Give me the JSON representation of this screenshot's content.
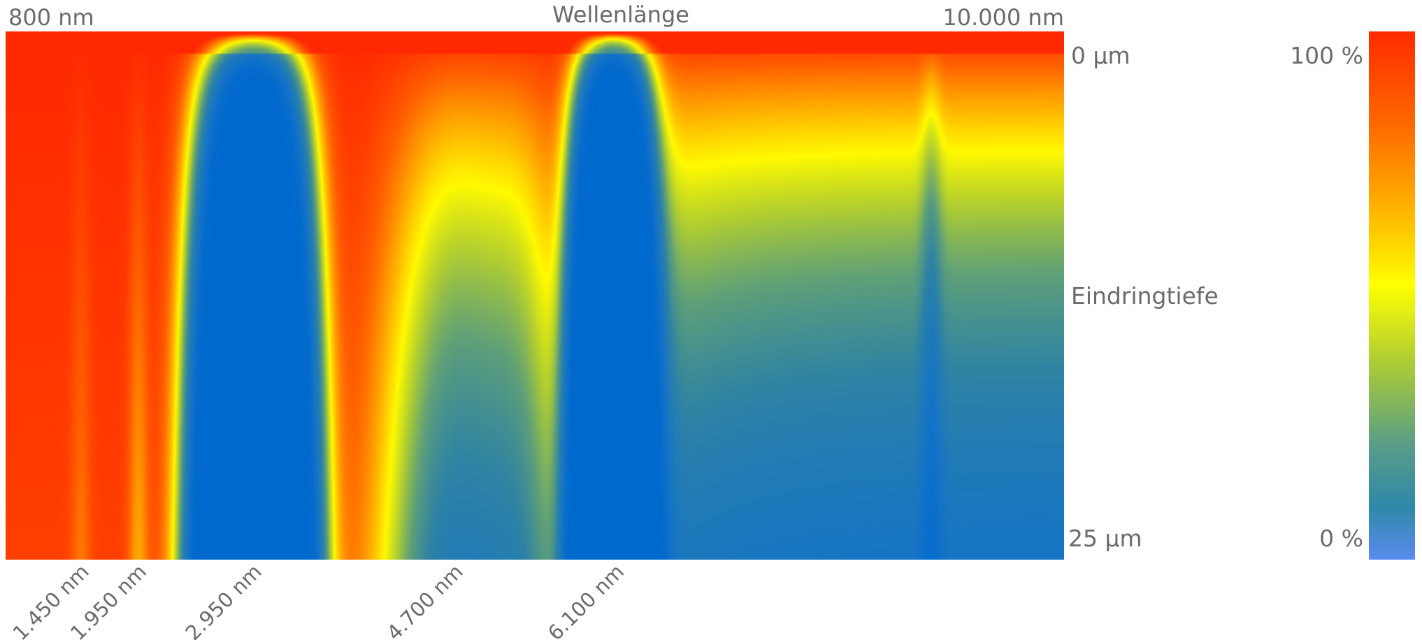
{
  "chart_data": {
    "type": "heatmap",
    "title": "",
    "xlabel": "Wellenlänge",
    "ylabel": "Eindringtiefe",
    "x_range_labels": {
      "start": "800 nm",
      "end": "10.000 nm"
    },
    "xlim": [
      800,
      10000
    ],
    "y_range_labels": {
      "top": "0 µm",
      "bottom": "25 µm"
    },
    "ylim": [
      0,
      25
    ],
    "x_ticks": [
      {
        "value": 1450,
        "label": "1.450 nm"
      },
      {
        "value": 1950,
        "label": "1.950 nm"
      },
      {
        "value": 2950,
        "label": "2.950 nm"
      },
      {
        "value": 4700,
        "label": "4.700 nm"
      },
      {
        "value": 6100,
        "label": "6.100 nm"
      }
    ],
    "colorbar": {
      "max_label": "100 %",
      "min_label": "0 %",
      "range": [
        0,
        100
      ],
      "colors": [
        "#ff2a00",
        "#ff7a00",
        "#ffb000",
        "#ffff00",
        "#a0c832",
        "#3e9a8c",
        "#2a86b0",
        "#5a8cf0"
      ]
    },
    "absorption_bands": [
      {
        "x": [
          2450,
          3500
        ],
        "depth_profile": "strong"
      },
      {
        "x": [
          4100,
          5500
        ],
        "depth_profile": "moderate"
      },
      {
        "x": [
          5500,
          6500
        ],
        "depth_profile": "strong"
      },
      {
        "x": [
          6300,
          10000
        ],
        "depth_profile": "broad"
      }
    ]
  }
}
